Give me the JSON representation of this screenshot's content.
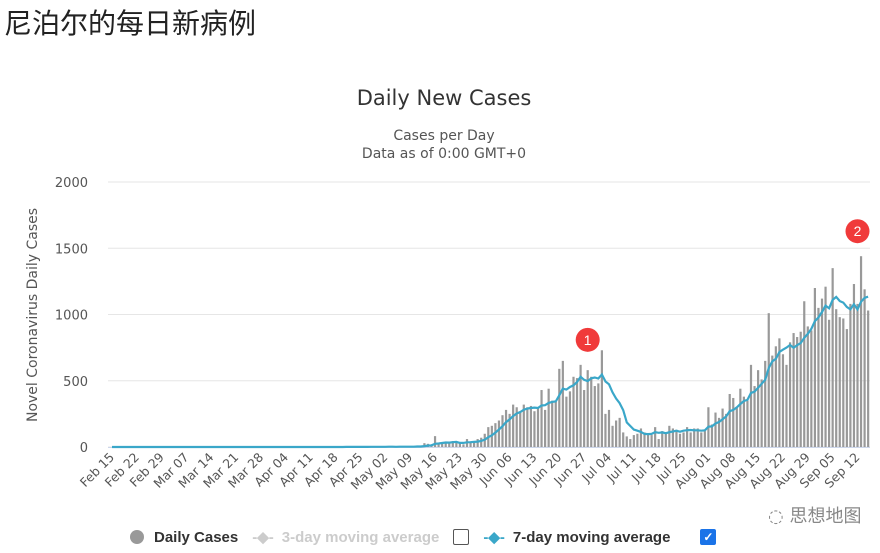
{
  "page_title": "尼泊尔的每日新病例",
  "watermark": "思想地图",
  "colors": {
    "bars": "#999999",
    "ma7": "#3aa7c9",
    "ma3": "#cccccc",
    "annotation": "#f03a3a"
  },
  "legend": {
    "daily": "Daily Cases",
    "ma3": "3-day moving average",
    "ma7": "7-day moving average",
    "ma3_checked": false,
    "ma7_checked": true
  },
  "chart_data": {
    "type": "bar",
    "title": "Daily New Cases",
    "subtitle": [
      "Cases per Day",
      "Data as of 0:00 GMT+0"
    ],
    "ylabel": "Novel Coronavirus Daily Cases",
    "xlabel": "",
    "ylim": [
      0,
      2000
    ],
    "yticks": [
      0,
      500,
      1000,
      1500,
      2000
    ],
    "grid": true,
    "start_date": "Feb 15",
    "xtick_labels": [
      "Feb 15",
      "Feb 22",
      "Feb 29",
      "Mar 07",
      "Mar 14",
      "Mar 21",
      "Mar 28",
      "Apr 04",
      "Apr 11",
      "Apr 18",
      "Apr 25",
      "May 02",
      "May 09",
      "May 16",
      "May 23",
      "May 30",
      "Jun 06",
      "Jun 13",
      "Jun 20",
      "Jun 27",
      "Jul 04",
      "Jul 11",
      "Jul 18",
      "Jul 25",
      "Aug 01",
      "Aug 08",
      "Aug 15",
      "Aug 22",
      "Aug 29",
      "Sep 05",
      "Sep 12"
    ],
    "annotations": [
      {
        "label": "1",
        "date": "Jun 28"
      },
      {
        "label": "2",
        "date": "Sep 12"
      }
    ],
    "series": [
      {
        "name": "Daily Cases",
        "values": [
          0,
          0,
          0,
          0,
          0,
          0,
          0,
          0,
          0,
          0,
          0,
          0,
          0,
          0,
          0,
          0,
          0,
          0,
          0,
          0,
          0,
          0,
          0,
          0,
          0,
          0,
          0,
          0,
          0,
          0,
          0,
          0,
          0,
          0,
          0,
          0,
          1,
          0,
          0,
          0,
          1,
          0,
          0,
          0,
          0,
          0,
          0,
          0,
          1,
          0,
          0,
          0,
          0,
          1,
          0,
          0,
          0,
          0,
          0,
          0,
          0,
          1,
          0,
          0,
          0,
          0,
          2,
          0,
          1,
          3,
          0,
          0,
          1,
          5,
          2,
          0,
          3,
          0,
          6,
          0,
          2,
          4,
          0,
          3,
          1,
          5,
          9,
          3,
          29,
          24,
          18,
          82,
          20,
          33,
          30,
          27,
          45,
          30,
          34,
          20,
          60,
          40,
          40,
          60,
          70,
          100,
          150,
          160,
          180,
          200,
          240,
          280,
          250,
          320,
          300,
          260,
          320,
          300,
          310,
          270,
          300,
          430,
          280,
          440,
          350,
          340,
          590,
          650,
          380,
          420,
          530,
          520,
          620,
          430,
          580,
          530,
          460,
          480,
          730,
          250,
          280,
          160,
          200,
          220,
          110,
          80,
          60,
          90,
          100,
          140,
          110,
          100,
          90,
          150,
          60,
          120,
          100,
          160,
          140,
          130,
          100,
          110,
          150,
          110,
          140,
          140,
          110,
          120,
          300,
          170,
          260,
          220,
          290,
          250,
          400,
          370,
          300,
          440,
          380,
          350,
          620,
          460,
          580,
          510,
          650,
          1010,
          690,
          760,
          820,
          700,
          620,
          790,
          860,
          830,
          870,
          1100,
          910,
          880,
          1200,
          1050,
          1120,
          1210,
          960,
          1350,
          1040,
          980,
          970,
          890,
          1080,
          1230,
          1080,
          1440,
          1190,
          1030
        ]
      },
      {
        "name": "7-day moving average",
        "derived": "7-day trailing mean of Daily Cases"
      }
    ]
  }
}
